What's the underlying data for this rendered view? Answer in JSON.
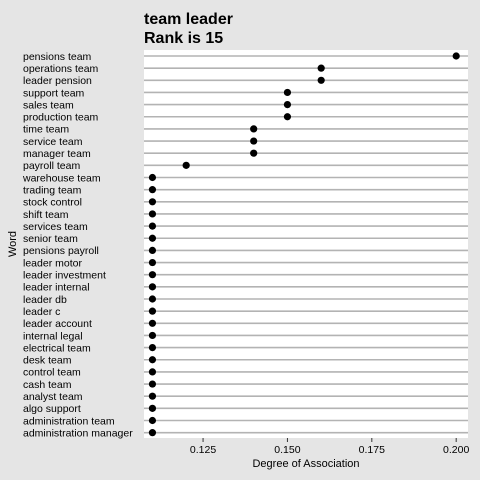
{
  "chart_data": {
    "type": "scatter",
    "title": "team leader",
    "subtitle": "Rank is 15",
    "xlabel": "Degree of Association",
    "ylabel": "Word",
    "xlim": [
      0.1075,
      0.2035
    ],
    "xticks": [
      0.125,
      0.15,
      0.175,
      0.2
    ],
    "xtick_labels": [
      "0.125",
      "0.150",
      "0.175",
      "0.200"
    ],
    "grid": "horizontal",
    "points": [
      {
        "word": "pensions team",
        "value": 0.2
      },
      {
        "word": "operations team",
        "value": 0.16
      },
      {
        "word": "leader pension",
        "value": 0.16
      },
      {
        "word": "support team",
        "value": 0.15
      },
      {
        "word": "sales team",
        "value": 0.15
      },
      {
        "word": "production team",
        "value": 0.15
      },
      {
        "word": "time team",
        "value": 0.14
      },
      {
        "word": "service team",
        "value": 0.14
      },
      {
        "word": "manager team",
        "value": 0.14
      },
      {
        "word": "payroll team",
        "value": 0.12
      },
      {
        "word": "warehouse team",
        "value": 0.11
      },
      {
        "word": "trading team",
        "value": 0.11
      },
      {
        "word": "stock control",
        "value": 0.11
      },
      {
        "word": "shift team",
        "value": 0.11
      },
      {
        "word": "services team",
        "value": 0.11
      },
      {
        "word": "senior team",
        "value": 0.11
      },
      {
        "word": "pensions payroll",
        "value": 0.11
      },
      {
        "word": "leader motor",
        "value": 0.11
      },
      {
        "word": "leader investment",
        "value": 0.11
      },
      {
        "word": "leader internal",
        "value": 0.11
      },
      {
        "word": "leader db",
        "value": 0.11
      },
      {
        "word": "leader c",
        "value": 0.11
      },
      {
        "word": "leader account",
        "value": 0.11
      },
      {
        "word": "internal legal",
        "value": 0.11
      },
      {
        "word": "electrical team",
        "value": 0.11
      },
      {
        "word": "desk team",
        "value": 0.11
      },
      {
        "word": "control team",
        "value": 0.11
      },
      {
        "word": "cash team",
        "value": 0.11
      },
      {
        "word": "analyst team",
        "value": 0.11
      },
      {
        "word": "algo support",
        "value": 0.11
      },
      {
        "word": "administration team",
        "value": 0.11
      },
      {
        "word": "administration manager",
        "value": 0.11
      }
    ],
    "colors": {
      "background": "#e5e5e5",
      "panel": "#ffffff",
      "gridline": "#b3b3b3",
      "point": "#000000"
    }
  }
}
